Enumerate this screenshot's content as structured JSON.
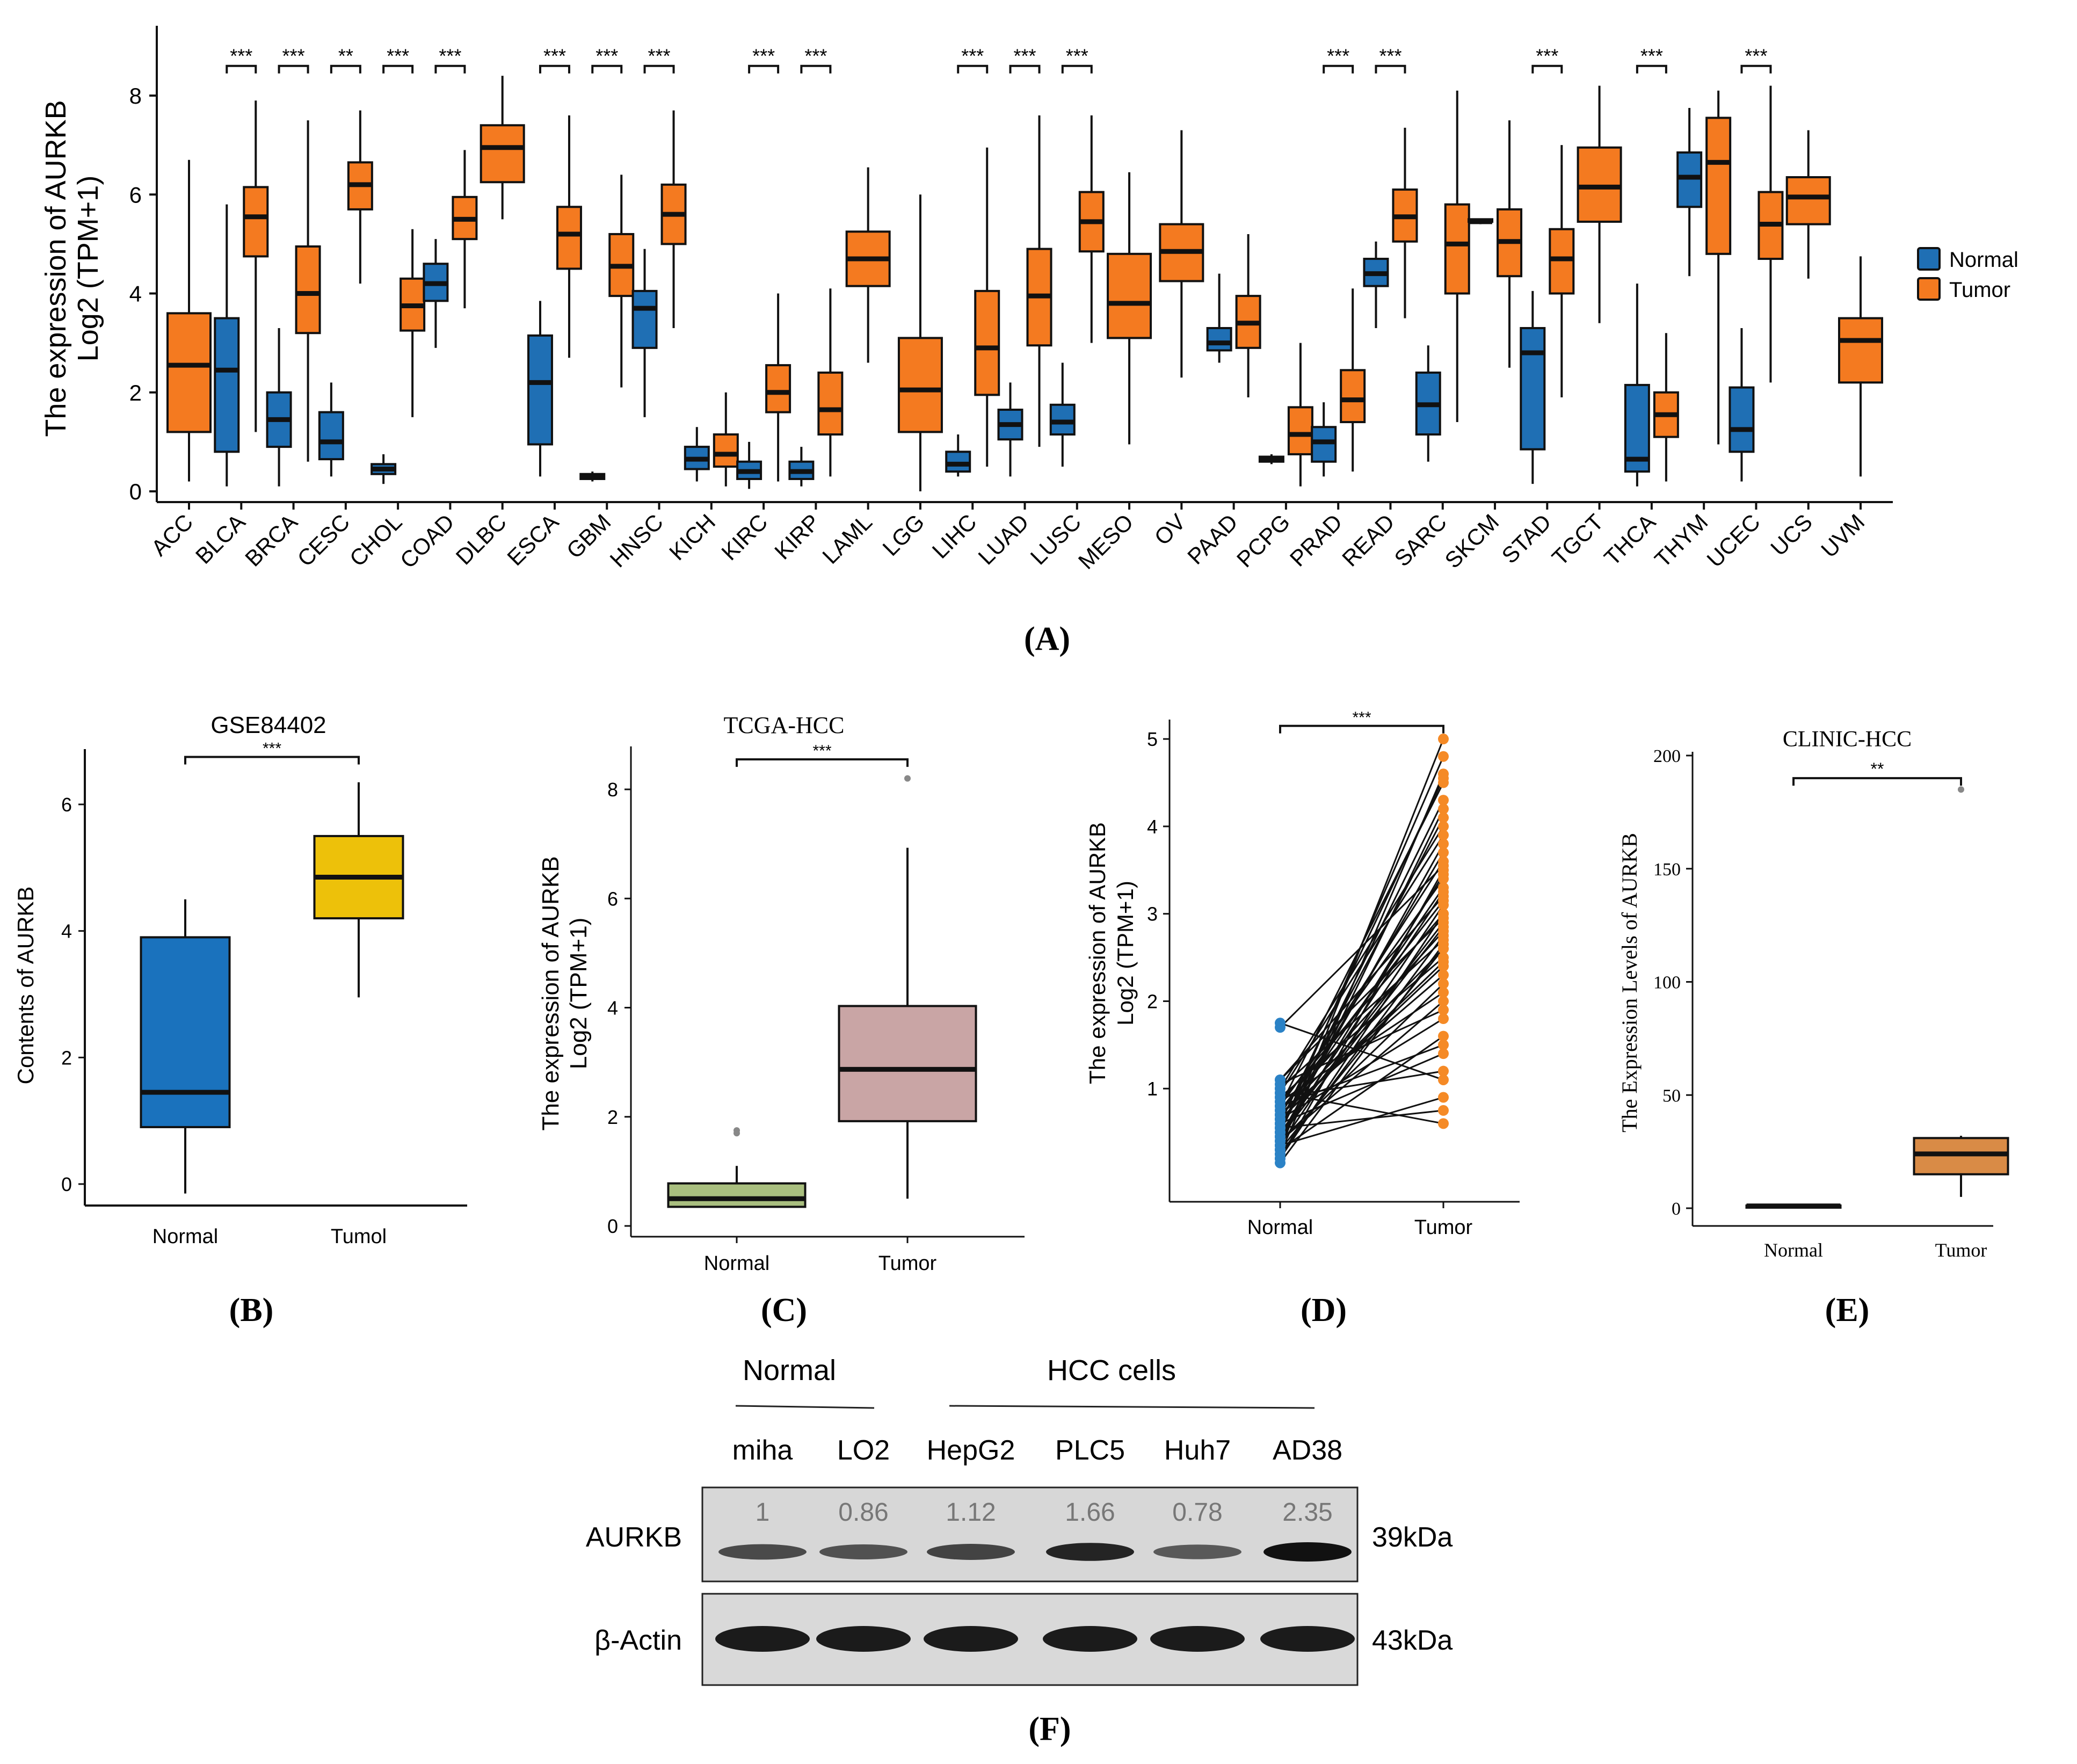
{
  "colors": {
    "normal": "#1f6fb4",
    "tumor": "#f47a20",
    "b_normal": "#1a72bd",
    "b_tumor": "#edc10a",
    "c_normal": "#a9bf7f",
    "c_tumor": "#c9a5a5",
    "d_normal": "#2b82c6",
    "d_tumor": "#f58a26",
    "e_normal": "#1a1a1a",
    "e_tumor": "#d98b46"
  },
  "panel_labels": {
    "a": "(A)",
    "b": "(B)",
    "c": "(C)",
    "d": "(D)",
    "e": "(E)",
    "f": "(F)"
  },
  "chart_data": [
    {
      "id": "A",
      "type": "box",
      "title": "",
      "ylabel_line1": "The expression of AURKB",
      "ylabel_line2": "Log2 (TPM+1)",
      "ylim": [
        0,
        9
      ],
      "yticks": [
        0,
        2,
        4,
        6,
        8
      ],
      "legend": {
        "position": "right",
        "entries": [
          "Normal",
          "Tumor"
        ]
      },
      "categories": [
        "ACC",
        "BLCA",
        "BRCA",
        "CESC",
        "CHOL",
        "COAD",
        "DLBC",
        "ESCA",
        "GBM",
        "HNSC",
        "KICH",
        "KIRC",
        "KIRP",
        "LAML",
        "LGG",
        "LIHC",
        "LUAD",
        "LUSC",
        "MESO",
        "OV",
        "PAAD",
        "PCPG",
        "PRAD",
        "READ",
        "SARC",
        "SKCM",
        "STAD",
        "TGCT",
        "THCA",
        "THYM",
        "UCEC",
        "UCS",
        "UVM"
      ],
      "boxes": [
        {
          "cat": "ACC",
          "group": "Tumor",
          "min": 0.2,
          "q1": 1.2,
          "median": 2.55,
          "q3": 3.6,
          "max": 6.7
        },
        {
          "cat": "BLCA",
          "group": "Normal",
          "min": 0.1,
          "q1": 0.8,
          "median": 2.45,
          "q3": 3.5,
          "max": 5.8
        },
        {
          "cat": "BLCA",
          "group": "Tumor",
          "min": 1.2,
          "q1": 4.75,
          "median": 5.55,
          "q3": 6.15,
          "max": 7.9
        },
        {
          "cat": "BRCA",
          "group": "Normal",
          "min": 0.1,
          "q1": 0.9,
          "median": 1.45,
          "q3": 2.0,
          "max": 3.3
        },
        {
          "cat": "BRCA",
          "group": "Tumor",
          "min": 0.6,
          "q1": 3.2,
          "median": 4.0,
          "q3": 4.95,
          "max": 7.5
        },
        {
          "cat": "CESC",
          "group": "Normal",
          "min": 0.3,
          "q1": 0.65,
          "median": 1.0,
          "q3": 1.6,
          "max": 2.2
        },
        {
          "cat": "CESC",
          "group": "Tumor",
          "min": 4.2,
          "q1": 5.7,
          "median": 6.2,
          "q3": 6.65,
          "max": 7.7
        },
        {
          "cat": "CHOL",
          "group": "Normal",
          "min": 0.15,
          "q1": 0.35,
          "median": 0.45,
          "q3": 0.55,
          "max": 0.75
        },
        {
          "cat": "CHOL",
          "group": "Tumor",
          "min": 1.5,
          "q1": 3.25,
          "median": 3.75,
          "q3": 4.3,
          "max": 5.3
        },
        {
          "cat": "COAD",
          "group": "Normal",
          "min": 2.9,
          "q1": 3.85,
          "median": 4.2,
          "q3": 4.6,
          "max": 5.1
        },
        {
          "cat": "COAD",
          "group": "Tumor",
          "min": 3.7,
          "q1": 5.1,
          "median": 5.5,
          "q3": 5.95,
          "max": 6.9
        },
        {
          "cat": "DLBC",
          "group": "Tumor",
          "min": 5.5,
          "q1": 6.25,
          "median": 6.95,
          "q3": 7.4,
          "max": 8.4
        },
        {
          "cat": "ESCA",
          "group": "Normal",
          "min": 0.3,
          "q1": 0.95,
          "median": 2.2,
          "q3": 3.15,
          "max": 3.85
        },
        {
          "cat": "ESCA",
          "group": "Tumor",
          "min": 2.7,
          "q1": 4.5,
          "median": 5.2,
          "q3": 5.75,
          "max": 7.6
        },
        {
          "cat": "GBM",
          "group": "Normal",
          "min": 0.2,
          "q1": 0.25,
          "median": 0.3,
          "q3": 0.35,
          "max": 0.4
        },
        {
          "cat": "GBM",
          "group": "Tumor",
          "min": 2.1,
          "q1": 3.95,
          "median": 4.55,
          "q3": 5.2,
          "max": 6.4
        },
        {
          "cat": "HNSC",
          "group": "Normal",
          "min": 1.5,
          "q1": 2.9,
          "median": 3.7,
          "q3": 4.05,
          "max": 4.9
        },
        {
          "cat": "HNSC",
          "group": "Tumor",
          "min": 3.3,
          "q1": 5.0,
          "median": 5.6,
          "q3": 6.2,
          "max": 7.7
        },
        {
          "cat": "KICH",
          "group": "Normal",
          "min": 0.2,
          "q1": 0.45,
          "median": 0.65,
          "q3": 0.9,
          "max": 1.3
        },
        {
          "cat": "KICH",
          "group": "Tumor",
          "min": 0.1,
          "q1": 0.5,
          "median": 0.75,
          "q3": 1.15,
          "max": 2.0
        },
        {
          "cat": "KIRC",
          "group": "Normal",
          "min": 0.05,
          "q1": 0.25,
          "median": 0.4,
          "q3": 0.6,
          "max": 1.0
        },
        {
          "cat": "KIRC",
          "group": "Tumor",
          "min": 0.2,
          "q1": 1.6,
          "median": 2.0,
          "q3": 2.55,
          "max": 4.0
        },
        {
          "cat": "KIRP",
          "group": "Normal",
          "min": 0.1,
          "q1": 0.25,
          "median": 0.4,
          "q3": 0.6,
          "max": 0.9
        },
        {
          "cat": "KIRP",
          "group": "Tumor",
          "min": 0.3,
          "q1": 1.15,
          "median": 1.65,
          "q3": 2.4,
          "max": 4.1
        },
        {
          "cat": "LAML",
          "group": "Tumor",
          "min": 2.6,
          "q1": 4.15,
          "median": 4.7,
          "q3": 5.25,
          "max": 6.55
        },
        {
          "cat": "LGG",
          "group": "Tumor",
          "min": 0.0,
          "q1": 1.2,
          "median": 2.05,
          "q3": 3.1,
          "max": 6.0
        },
        {
          "cat": "LIHC",
          "group": "Normal",
          "min": 0.3,
          "q1": 0.4,
          "median": 0.55,
          "q3": 0.8,
          "max": 1.15
        },
        {
          "cat": "LIHC",
          "group": "Tumor",
          "min": 0.5,
          "q1": 1.95,
          "median": 2.9,
          "q3": 4.05,
          "max": 6.95
        },
        {
          "cat": "LUAD",
          "group": "Normal",
          "min": 0.3,
          "q1": 1.05,
          "median": 1.35,
          "q3": 1.65,
          "max": 2.2
        },
        {
          "cat": "LUAD",
          "group": "Tumor",
          "min": 0.9,
          "q1": 2.95,
          "median": 3.95,
          "q3": 4.9,
          "max": 7.6
        },
        {
          "cat": "LUSC",
          "group": "Normal",
          "min": 0.5,
          "q1": 1.15,
          "median": 1.4,
          "q3": 1.75,
          "max": 2.6
        },
        {
          "cat": "LUSC",
          "group": "Tumor",
          "min": 3.0,
          "q1": 4.85,
          "median": 5.45,
          "q3": 6.05,
          "max": 7.6
        },
        {
          "cat": "MESO",
          "group": "Tumor",
          "min": 0.95,
          "q1": 3.1,
          "median": 3.8,
          "q3": 4.8,
          "max": 6.45
        },
        {
          "cat": "OV",
          "group": "Tumor",
          "min": 2.3,
          "q1": 4.25,
          "median": 4.85,
          "q3": 5.4,
          "max": 7.3
        },
        {
          "cat": "PAAD",
          "group": "Normal",
          "min": 2.6,
          "q1": 2.85,
          "median": 3.0,
          "q3": 3.3,
          "max": 4.4
        },
        {
          "cat": "PAAD",
          "group": "Tumor",
          "min": 1.9,
          "q1": 2.9,
          "median": 3.4,
          "q3": 3.95,
          "max": 5.2
        },
        {
          "cat": "PCPG",
          "group": "Normal",
          "min": 0.55,
          "q1": 0.6,
          "median": 0.65,
          "q3": 0.7,
          "max": 0.75
        },
        {
          "cat": "PCPG",
          "group": "Tumor",
          "min": 0.1,
          "q1": 0.75,
          "median": 1.15,
          "q3": 1.7,
          "max": 3.0
        },
        {
          "cat": "PRAD",
          "group": "Normal",
          "min": 0.3,
          "q1": 0.6,
          "median": 1.0,
          "q3": 1.3,
          "max": 1.8
        },
        {
          "cat": "PRAD",
          "group": "Tumor",
          "min": 0.4,
          "q1": 1.4,
          "median": 1.85,
          "q3": 2.45,
          "max": 4.1
        },
        {
          "cat": "READ",
          "group": "Normal",
          "min": 3.3,
          "q1": 4.15,
          "median": 4.4,
          "q3": 4.7,
          "max": 5.05
        },
        {
          "cat": "READ",
          "group": "Tumor",
          "min": 3.5,
          "q1": 5.05,
          "median": 5.55,
          "q3": 6.1,
          "max": 7.35
        },
        {
          "cat": "SARC",
          "group": "Normal",
          "min": 0.6,
          "q1": 1.15,
          "median": 1.75,
          "q3": 2.4,
          "max": 2.95
        },
        {
          "cat": "SARC",
          "group": "Tumor",
          "min": 1.4,
          "q1": 4.0,
          "median": 5.0,
          "q3": 5.8,
          "max": 8.1
        },
        {
          "cat": "SKCM",
          "group": "Normal",
          "min": 5.4,
          "q1": 5.45,
          "median": 5.45,
          "q3": 5.5,
          "max": 5.5
        },
        {
          "cat": "SKCM",
          "group": "Tumor",
          "min": 2.5,
          "q1": 4.35,
          "median": 5.05,
          "q3": 5.7,
          "max": 7.5
        },
        {
          "cat": "STAD",
          "group": "Normal",
          "min": 0.15,
          "q1": 0.85,
          "median": 2.8,
          "q3": 3.3,
          "max": 4.05
        },
        {
          "cat": "STAD",
          "group": "Tumor",
          "min": 1.9,
          "q1": 4.0,
          "median": 4.7,
          "q3": 5.3,
          "max": 7.0
        },
        {
          "cat": "TGCT",
          "group": "Tumor",
          "min": 3.4,
          "q1": 5.45,
          "median": 6.15,
          "q3": 6.95,
          "max": 8.2
        },
        {
          "cat": "THCA",
          "group": "Normal",
          "min": 0.1,
          "q1": 0.4,
          "median": 0.65,
          "q3": 2.15,
          "max": 4.2
        },
        {
          "cat": "THCA",
          "group": "Tumor",
          "min": 0.2,
          "q1": 1.1,
          "median": 1.55,
          "q3": 2.0,
          "max": 3.2
        },
        {
          "cat": "THYM",
          "group": "Normal",
          "min": 4.35,
          "q1": 5.75,
          "median": 6.35,
          "q3": 6.85,
          "max": 7.75
        },
        {
          "cat": "THYM",
          "group": "Tumor",
          "min": 0.95,
          "q1": 4.8,
          "median": 6.65,
          "q3": 7.55,
          "max": 8.1
        },
        {
          "cat": "UCEC",
          "group": "Normal",
          "min": 0.2,
          "q1": 0.8,
          "median": 1.25,
          "q3": 2.1,
          "max": 3.3
        },
        {
          "cat": "UCEC",
          "group": "Tumor",
          "min": 2.2,
          "q1": 4.7,
          "median": 5.4,
          "q3": 6.05,
          "max": 8.2
        },
        {
          "cat": "UCS",
          "group": "Tumor",
          "min": 4.3,
          "q1": 5.4,
          "median": 5.95,
          "q3": 6.35,
          "max": 7.3
        },
        {
          "cat": "UVM",
          "group": "Tumor",
          "min": 0.3,
          "q1": 2.2,
          "median": 3.05,
          "q3": 3.5,
          "max": 4.75
        }
      ],
      "significance": [
        {
          "cat": "BLCA",
          "label": "***"
        },
        {
          "cat": "BRCA",
          "label": "***"
        },
        {
          "cat": "CESC",
          "label": "**"
        },
        {
          "cat": "CHOL",
          "label": "***"
        },
        {
          "cat": "COAD",
          "label": "***"
        },
        {
          "cat": "ESCA",
          "label": "***"
        },
        {
          "cat": "GBM",
          "label": "***"
        },
        {
          "cat": "HNSC",
          "label": "***"
        },
        {
          "cat": "KIRC",
          "label": "***"
        },
        {
          "cat": "KIRP",
          "label": "***"
        },
        {
          "cat": "LIHC",
          "label": "***"
        },
        {
          "cat": "LUAD",
          "label": "***"
        },
        {
          "cat": "LUSC",
          "label": "***"
        },
        {
          "cat": "PRAD",
          "label": "***"
        },
        {
          "cat": "READ",
          "label": "***"
        },
        {
          "cat": "STAD",
          "label": "***"
        },
        {
          "cat": "THCA",
          "label": "***"
        },
        {
          "cat": "UCEC",
          "label": "***"
        }
      ]
    },
    {
      "id": "B",
      "type": "box",
      "title": "GSE84402",
      "ylabel": "Contents of AURKB",
      "ylim": [
        -0.3,
        7
      ],
      "yticks": [
        0,
        2,
        4,
        6
      ],
      "categories": [
        "Normal",
        "Tumol"
      ],
      "boxes": [
        {
          "cat": "Normal",
          "min": -0.15,
          "q1": 0.9,
          "median": 1.45,
          "q3": 3.9,
          "max": 4.5
        },
        {
          "cat": "Tumol",
          "min": 2.95,
          "q1": 4.2,
          "median": 4.85,
          "q3": 5.5,
          "max": 6.35
        }
      ],
      "significance": "***"
    },
    {
      "id": "C",
      "type": "box",
      "title": "TCGA-HCC",
      "ylabel_line1": "The expression of AURKB",
      "ylabel_line2": "Log2 (TPM+1)",
      "ylim": [
        0,
        9
      ],
      "yticks": [
        0,
        2,
        4,
        6,
        8
      ],
      "categories": [
        "Normal",
        "Tumor"
      ],
      "boxes": [
        {
          "cat": "Normal",
          "min": 0.35,
          "q1": 0.35,
          "median": 0.5,
          "q3": 0.78,
          "max": 1.1
        },
        {
          "cat": "Tumor",
          "min": 0.5,
          "q1": 1.92,
          "median": 2.87,
          "q3": 4.03,
          "max": 6.93
        }
      ],
      "outliers": [
        {
          "cat": "Normal",
          "values": [
            1.7,
            1.75
          ]
        },
        {
          "cat": "Tumor",
          "values": [
            8.2
          ]
        }
      ],
      "significance": "***"
    },
    {
      "id": "D",
      "type": "paired-scatter",
      "ylabel_line1": "The expression of AURKB",
      "ylabel_line2": "Log2 (TPM+1)",
      "ylim": [
        0,
        5.3
      ],
      "yticks": [
        1,
        2,
        3,
        4,
        5
      ],
      "categories": [
        "Normal",
        "Tumor"
      ],
      "pairs": [
        [
          0.2,
          3.5
        ],
        [
          0.3,
          2.6
        ],
        [
          0.35,
          3.1
        ],
        [
          0.4,
          2.2
        ],
        [
          0.45,
          3.8
        ],
        [
          0.5,
          2.9
        ],
        [
          0.55,
          4.1
        ],
        [
          0.6,
          3.3
        ],
        [
          0.65,
          2.4
        ],
        [
          0.7,
          3.6
        ],
        [
          0.75,
          2.8
        ],
        [
          0.8,
          4.5
        ],
        [
          0.85,
          3.0
        ],
        [
          0.9,
          2.5
        ],
        [
          0.95,
          3.9
        ],
        [
          1.0,
          2.7
        ],
        [
          1.05,
          1.9
        ],
        [
          1.1,
          3.2
        ],
        [
          0.25,
          4.6
        ],
        [
          0.3,
          1.6
        ],
        [
          0.4,
          2.0
        ],
        [
          0.5,
          4.3
        ],
        [
          0.6,
          1.4
        ],
        [
          0.7,
          2.3
        ],
        [
          0.8,
          3.4
        ],
        [
          0.9,
          1.2
        ],
        [
          1.0,
          4.0
        ],
        [
          0.15,
          2.65
        ],
        [
          0.2,
          3.0
        ],
        [
          0.35,
          0.9
        ],
        [
          0.45,
          2.85
        ],
        [
          0.55,
          3.7
        ],
        [
          0.65,
          1.8
        ],
        [
          0.75,
          3.15
        ],
        [
          0.85,
          2.1
        ],
        [
          0.95,
          0.6
        ],
        [
          1.1,
          2.95
        ],
        [
          1.75,
          1.1
        ],
        [
          1.7,
          3.55
        ],
        [
          0.3,
          5.0
        ],
        [
          0.5,
          4.8
        ],
        [
          0.6,
          4.55
        ],
        [
          0.25,
          2.75
        ],
        [
          0.4,
          3.45
        ],
        [
          0.7,
          2.6
        ],
        [
          0.8,
          1.5
        ],
        [
          0.55,
          0.75
        ],
        [
          0.35,
          4.2
        ],
        [
          0.45,
          3.25
        ],
        [
          0.65,
          2.45
        ]
      ],
      "significance": "***"
    },
    {
      "id": "E",
      "type": "box",
      "title": "CLINIC-HCC",
      "ylabel": "The Expression Levels of AURKB",
      "ylim": [
        0,
        210
      ],
      "yticks": [
        0,
        50,
        100,
        150,
        200
      ],
      "categories": [
        "Normal",
        "Tumor"
      ],
      "boxes": [
        {
          "cat": "Normal",
          "min": 0.5,
          "q1": 0.6,
          "median": 1,
          "q3": 1.2,
          "max": 1.5
        },
        {
          "cat": "Tumor",
          "min": 5,
          "q1": 15,
          "median": 24,
          "q3": 31,
          "max": 32
        }
      ],
      "outliers": [
        {
          "cat": "Tumor",
          "values": [
            185
          ]
        }
      ],
      "significance": "**"
    },
    {
      "id": "F",
      "type": "western-blot",
      "groups": [
        {
          "label": "Normal",
          "lanes": [
            0,
            1
          ]
        },
        {
          "label": "HCC cells",
          "lanes": [
            2,
            5
          ]
        }
      ],
      "lanes": [
        "miha",
        "LO2",
        "HepG2",
        "PLC5",
        "Huh7",
        "AD38"
      ],
      "rows": [
        {
          "protein": "AURKB",
          "size": "39kDa",
          "values": [
            "1",
            "0.86",
            "1.12",
            "1.66",
            "0.78",
            "2.35"
          ],
          "intensity": [
            0.55,
            0.5,
            0.62,
            0.85,
            0.45,
            1.0
          ]
        },
        {
          "protein": "β-Actin",
          "size": "43kDa",
          "intensity": [
            1,
            1,
            1,
            1,
            1,
            1
          ]
        }
      ]
    }
  ]
}
